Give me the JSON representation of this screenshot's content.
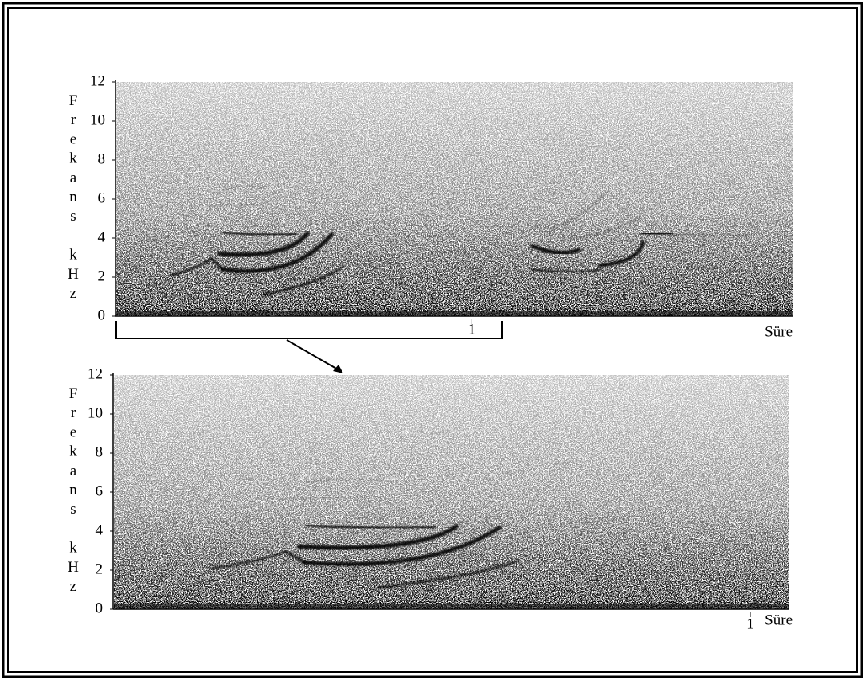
{
  "chart_data": [
    {
      "type": "spectrogram",
      "ylabel": "Frekans kHz",
      "xlabel": "Süre",
      "xlim": [
        0,
        1.9
      ],
      "xticks": [
        1
      ],
      "ylim": [
        0,
        12
      ],
      "yticks": [
        0,
        2,
        4,
        6,
        8,
        10,
        12
      ]
    },
    {
      "type": "spectrogram",
      "ylabel": "Frekans kHz",
      "xlabel": "Süre",
      "xlim": [
        0,
        1.06
      ],
      "xticks": [
        1
      ],
      "ylim": [
        0,
        12
      ],
      "yticks": [
        0,
        2,
        4,
        6,
        8,
        10,
        12
      ]
    }
  ]
}
